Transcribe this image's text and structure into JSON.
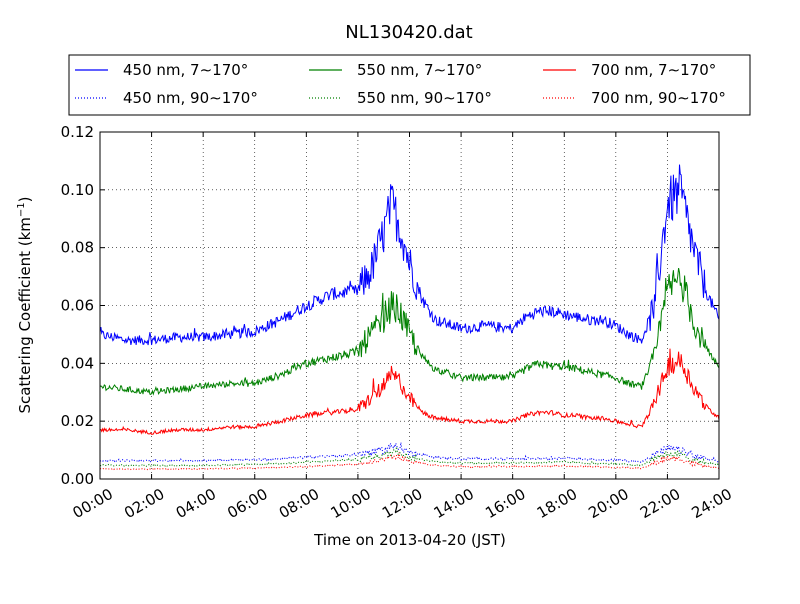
{
  "chart_data": {
    "type": "line",
    "title": "NL130420.dat",
    "xlabel": "Time on 2013-04-20 (JST)",
    "ylabel": "Scattering Coefficient (km",
    "ylabel_exp": "−1",
    "ylabel_close": ")",
    "xlim": [
      "00:00",
      "24:00"
    ],
    "ylim": [
      0,
      0.12
    ],
    "grid": true,
    "legend_position": "top",
    "x_ticks": [
      "00:00",
      "02:00",
      "04:00",
      "06:00",
      "08:00",
      "10:00",
      "12:00",
      "14:00",
      "16:00",
      "18:00",
      "20:00",
      "22:00",
      "24:00"
    ],
    "y_ticks": [
      "0.00",
      "0.02",
      "0.04",
      "0.06",
      "0.08",
      "0.10",
      "0.12"
    ],
    "x_unit": "hour",
    "series": [
      {
        "name": "450 nm, 7∼170°",
        "color": "#0000ff",
        "style": "solid",
        "x": [
          0,
          1,
          2,
          3,
          4,
          5,
          6,
          7,
          8,
          9,
          10,
          10.5,
          11,
          11.3,
          11.6,
          12,
          12.5,
          13,
          14,
          15,
          16,
          16.5,
          17,
          17.5,
          18,
          18.5,
          19,
          19.5,
          20,
          20.5,
          21,
          21.5,
          22,
          22.5,
          23,
          23.5,
          24
        ],
        "y": [
          0.05,
          0.048,
          0.048,
          0.049,
          0.049,
          0.05,
          0.051,
          0.055,
          0.06,
          0.064,
          0.065,
          0.072,
          0.085,
          0.095,
          0.088,
          0.075,
          0.062,
          0.055,
          0.052,
          0.053,
          0.052,
          0.056,
          0.058,
          0.058,
          0.057,
          0.056,
          0.055,
          0.055,
          0.053,
          0.05,
          0.048,
          0.06,
          0.095,
          0.1,
          0.08,
          0.065,
          0.055
        ]
      },
      {
        "name": "550 nm, 7∼170°",
        "color": "#008000",
        "style": "solid",
        "x": [
          0,
          1,
          2,
          3,
          4,
          5,
          6,
          7,
          8,
          9,
          10,
          10.5,
          11,
          11.3,
          11.6,
          12,
          12.5,
          13,
          14,
          15,
          16,
          16.5,
          17,
          17.5,
          18,
          18.5,
          19,
          19.5,
          20,
          20.5,
          21,
          21.5,
          22,
          22.5,
          23,
          23.5,
          24
        ],
        "y": [
          0.032,
          0.031,
          0.03,
          0.031,
          0.032,
          0.033,
          0.033,
          0.036,
          0.04,
          0.042,
          0.044,
          0.05,
          0.055,
          0.06,
          0.058,
          0.05,
          0.042,
          0.038,
          0.035,
          0.035,
          0.035,
          0.038,
          0.04,
          0.039,
          0.039,
          0.038,
          0.037,
          0.036,
          0.035,
          0.033,
          0.032,
          0.042,
          0.065,
          0.07,
          0.055,
          0.045,
          0.038
        ]
      },
      {
        "name": "700 nm, 7∼170°",
        "color": "#ff0000",
        "style": "solid",
        "x": [
          0,
          1,
          2,
          3,
          4,
          5,
          6,
          7,
          8,
          9,
          10,
          10.5,
          11,
          11.3,
          11.6,
          12,
          12.5,
          13,
          14,
          15,
          16,
          16.5,
          17,
          17.5,
          18,
          18.5,
          19,
          19.5,
          20,
          20.5,
          21,
          21.5,
          22,
          22.5,
          23,
          23.5,
          24
        ],
        "y": [
          0.017,
          0.017,
          0.016,
          0.017,
          0.017,
          0.018,
          0.018,
          0.02,
          0.022,
          0.023,
          0.024,
          0.028,
          0.032,
          0.036,
          0.034,
          0.028,
          0.023,
          0.021,
          0.02,
          0.02,
          0.02,
          0.022,
          0.023,
          0.023,
          0.022,
          0.022,
          0.021,
          0.021,
          0.02,
          0.019,
          0.018,
          0.026,
          0.039,
          0.041,
          0.032,
          0.025,
          0.021
        ]
      },
      {
        "name": "450 nm, 90∼170°",
        "color": "#0000ff",
        "style": "dotted",
        "x": [
          0,
          2,
          4,
          6,
          8,
          10,
          11,
          11.5,
          12,
          13,
          14,
          16,
          18,
          20,
          21,
          21.5,
          22,
          22.5,
          23,
          24
        ],
        "y": [
          0.0065,
          0.0063,
          0.0064,
          0.0066,
          0.0075,
          0.0085,
          0.01,
          0.012,
          0.009,
          0.0075,
          0.007,
          0.007,
          0.0072,
          0.0065,
          0.006,
          0.0085,
          0.0105,
          0.01,
          0.008,
          0.006
        ]
      },
      {
        "name": "550 nm, 90∼170°",
        "color": "#008000",
        "style": "dotted",
        "x": [
          0,
          2,
          4,
          6,
          8,
          10,
          11,
          11.5,
          12,
          13,
          14,
          16,
          18,
          20,
          21,
          21.5,
          22,
          22.5,
          23,
          24
        ],
        "y": [
          0.0048,
          0.0046,
          0.0047,
          0.005,
          0.0058,
          0.0068,
          0.0082,
          0.01,
          0.0075,
          0.006,
          0.0055,
          0.0056,
          0.0058,
          0.0052,
          0.0048,
          0.007,
          0.0088,
          0.0085,
          0.0065,
          0.0048
        ]
      },
      {
        "name": "700 nm, 90∼170°",
        "color": "#ff0000",
        "style": "dotted",
        "x": [
          0,
          2,
          4,
          6,
          8,
          10,
          11,
          11.5,
          12,
          13,
          14,
          16,
          18,
          20,
          21,
          21.5,
          22,
          22.5,
          23,
          24
        ],
        "y": [
          0.0035,
          0.0034,
          0.0035,
          0.0037,
          0.0043,
          0.0052,
          0.0065,
          0.008,
          0.006,
          0.0047,
          0.0042,
          0.0043,
          0.0045,
          0.004,
          0.0036,
          0.0055,
          0.0072,
          0.007,
          0.0052,
          0.0036
        ]
      }
    ]
  }
}
